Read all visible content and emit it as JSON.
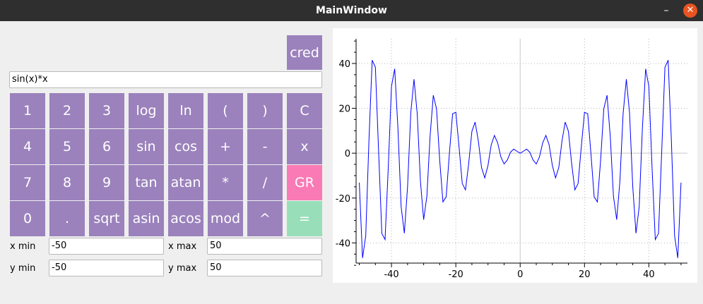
{
  "window": {
    "title": "MainWindow",
    "minimize_glyph": "–",
    "close_glyph": "✕"
  },
  "cred_button": "cred",
  "expression": "sin(x)*x",
  "keys": {
    "row1": [
      "1",
      "2",
      "3",
      "log",
      "ln",
      "(",
      ")",
      "C"
    ],
    "row2": [
      "4",
      "5",
      "6",
      "sin",
      "cos",
      "+",
      "-",
      "x"
    ],
    "row3": [
      "7",
      "8",
      "9",
      "tan",
      "atan",
      "*",
      "/",
      "GR"
    ],
    "row4": [
      "0",
      ".",
      "sqrt",
      "asin",
      "acos",
      "mod",
      "^",
      "="
    ]
  },
  "range": {
    "x_min_label": "x min",
    "x_min_value": "-50",
    "x_max_label": "x max",
    "x_max_value": "50",
    "y_min_label": "y min",
    "y_min_value": "-50",
    "y_max_label": "y max",
    "y_max_value": "50"
  },
  "colors": {
    "key": "#9b82bc",
    "graph_key": "#f97ab4",
    "equals_key": "#98dfb9",
    "series": "#0000ff"
  },
  "chart_data": {
    "type": "line",
    "function": "sin(x)*x",
    "x_ticks": [
      -40,
      -20,
      0,
      20,
      40
    ],
    "y_ticks": [
      -40,
      -20,
      0,
      20,
      40
    ],
    "xlim": [
      -51,
      52
    ],
    "ylim": [
      -49,
      51
    ],
    "grid": true,
    "samples": 101,
    "sample_range": [
      -50,
      50
    ]
  }
}
